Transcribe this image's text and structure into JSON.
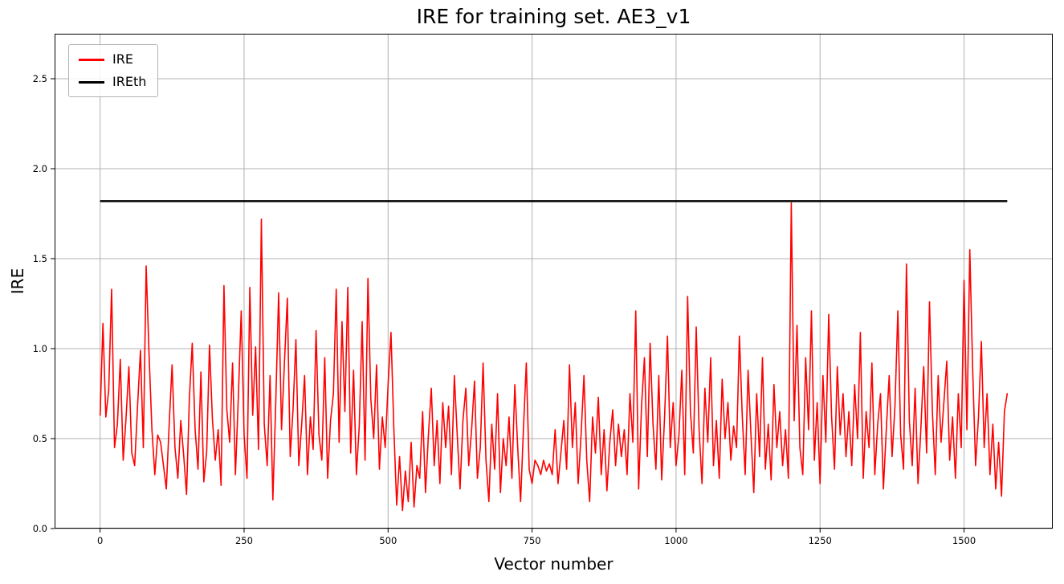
{
  "figure": {
    "title": "IRE for training set. AE3_v1",
    "xlabel": "Vector number",
    "ylabel": "IRE"
  },
  "legend": {
    "position": "upper left",
    "entries": [
      {
        "label": "IRE",
        "color": "#ff0000"
      },
      {
        "label": "IREth",
        "color": "#000000"
      }
    ]
  },
  "chart_data": {
    "type": "line",
    "title": "IRE for training set. AE3_v1",
    "xlabel": "Vector number",
    "ylabel": "IRE",
    "xlim": [
      -79,
      1654
    ],
    "ylim": [
      0,
      2.75
    ],
    "grid": true,
    "grid_color": "#b0b0b0",
    "legend_position": "upper left",
    "xticks": [
      0,
      250,
      500,
      750,
      1000,
      1250,
      1500
    ],
    "xtick_labels": [
      "0",
      "250",
      "500",
      "750",
      "1000",
      "1250",
      "1500"
    ],
    "yticks": [
      0,
      0.5,
      1.0,
      1.5,
      2.0,
      2.5
    ],
    "ytick_labels": [
      "0.0",
      "0.5",
      "1.0",
      "1.5",
      "2.0",
      "2.5"
    ],
    "threshold": {
      "name": "IREth",
      "value": 1.82,
      "color": "#000000",
      "x_range": [
        0,
        1575
      ],
      "linewidth": 2.5
    },
    "series": [
      {
        "name": "IRE",
        "color": "#ff0000",
        "linewidth": 1.6,
        "x_start": 0,
        "x_step": 5,
        "values": [
          0.63,
          1.14,
          0.62,
          0.77,
          1.33,
          0.45,
          0.58,
          0.94,
          0.38,
          0.61,
          0.9,
          0.42,
          0.35,
          0.68,
          0.99,
          0.45,
          1.46,
          0.97,
          0.55,
          0.3,
          0.52,
          0.48,
          0.35,
          0.22,
          0.58,
          0.91,
          0.45,
          0.28,
          0.6,
          0.41,
          0.19,
          0.72,
          1.03,
          0.55,
          0.33,
          0.87,
          0.26,
          0.43,
          1.02,
          0.61,
          0.38,
          0.55,
          0.24,
          1.35,
          0.66,
          0.48,
          0.92,
          0.3,
          0.73,
          1.21,
          0.52,
          0.28,
          1.34,
          0.63,
          1.01,
          0.44,
          1.72,
          0.58,
          0.35,
          0.85,
          0.16,
          0.7,
          1.31,
          0.55,
          0.92,
          1.28,
          0.4,
          0.66,
          1.05,
          0.35,
          0.58,
          0.85,
          0.3,
          0.62,
          0.44,
          1.1,
          0.52,
          0.38,
          0.95,
          0.28,
          0.6,
          0.75,
          1.33,
          0.48,
          1.15,
          0.65,
          1.34,
          0.42,
          0.88,
          0.3,
          0.57,
          1.15,
          0.38,
          1.39,
          0.72,
          0.5,
          0.91,
          0.33,
          0.62,
          0.45,
          0.8,
          1.09,
          0.55,
          0.13,
          0.4,
          0.1,
          0.32,
          0.15,
          0.48,
          0.12,
          0.35,
          0.28,
          0.65,
          0.2,
          0.52,
          0.78,
          0.35,
          0.6,
          0.25,
          0.7,
          0.45,
          0.68,
          0.3,
          0.85,
          0.52,
          0.22,
          0.6,
          0.78,
          0.35,
          0.55,
          0.82,
          0.28,
          0.45,
          0.92,
          0.38,
          0.15,
          0.58,
          0.33,
          0.75,
          0.2,
          0.5,
          0.35,
          0.62,
          0.28,
          0.8,
          0.45,
          0.15,
          0.55,
          0.92,
          0.33,
          0.25,
          0.38,
          0.35,
          0.3,
          0.38,
          0.32,
          0.36,
          0.3,
          0.55,
          0.25,
          0.42,
          0.6,
          0.33,
          0.91,
          0.45,
          0.7,
          0.25,
          0.52,
          0.85,
          0.38,
          0.15,
          0.62,
          0.42,
          0.73,
          0.3,
          0.55,
          0.21,
          0.48,
          0.66,
          0.35,
          0.58,
          0.4,
          0.55,
          0.3,
          0.75,
          0.48,
          1.21,
          0.22,
          0.68,
          0.95,
          0.4,
          1.03,
          0.58,
          0.33,
          0.85,
          0.27,
          0.62,
          1.07,
          0.45,
          0.7,
          0.35,
          0.52,
          0.88,
          0.3,
          1.29,
          0.65,
          0.42,
          1.12,
          0.55,
          0.25,
          0.78,
          0.48,
          0.95,
          0.35,
          0.6,
          0.28,
          0.83,
          0.5,
          0.7,
          0.38,
          0.57,
          0.45,
          1.07,
          0.62,
          0.3,
          0.88,
          0.52,
          0.2,
          0.75,
          0.4,
          0.95,
          0.33,
          0.58,
          0.27,
          0.8,
          0.45,
          0.65,
          0.35,
          0.55,
          0.28,
          1.81,
          0.6,
          1.13,
          0.45,
          0.3,
          0.95,
          0.55,
          1.21,
          0.38,
          0.7,
          0.25,
          0.85,
          0.48,
          1.19,
          0.62,
          0.33,
          0.9,
          0.52,
          0.75,
          0.4,
          0.65,
          0.35,
          0.8,
          0.5,
          1.09,
          0.28,
          0.65,
          0.45,
          0.92,
          0.3,
          0.58,
          0.75,
          0.22,
          0.55,
          0.85,
          0.4,
          0.68,
          1.21,
          0.52,
          0.33,
          1.47,
          0.6,
          0.35,
          0.78,
          0.25,
          0.55,
          0.9,
          0.42,
          1.26,
          0.65,
          0.3,
          0.85,
          0.48,
          0.7,
          0.93,
          0.38,
          0.62,
          0.28,
          0.75,
          0.45,
          1.38,
          0.55,
          1.55,
          0.88,
          0.35,
          0.62,
          1.04,
          0.45,
          0.75,
          0.3,
          0.58,
          0.22,
          0.48,
          0.18,
          0.65,
          0.75
        ]
      }
    ]
  }
}
